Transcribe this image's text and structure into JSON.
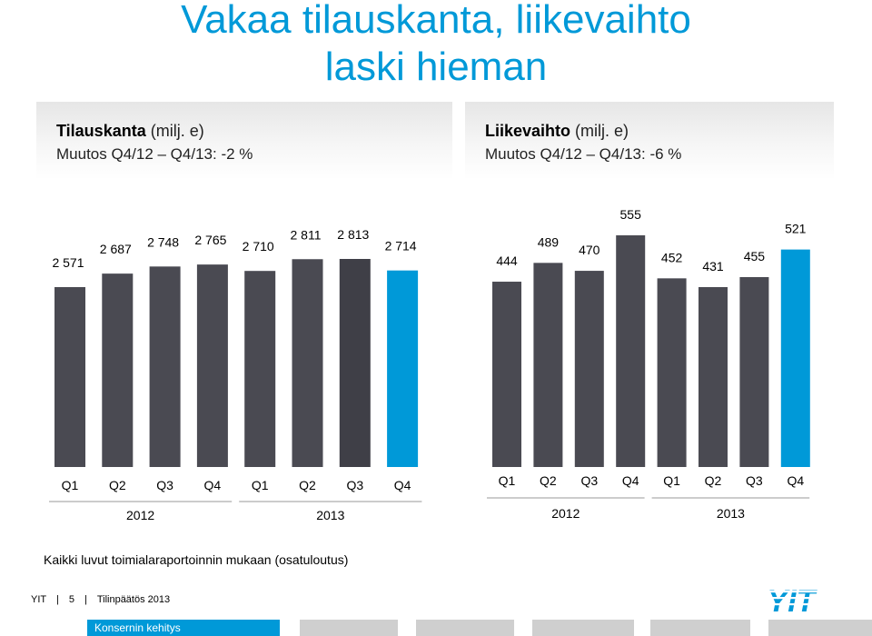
{
  "title_line1": "Vakaa tilauskanta, liikevaihto",
  "title_line2": "laski hieman",
  "left_panel": {
    "label": "Tilauskanta",
    "unit": "(milj. e)",
    "change": "Muutos Q4/12 – Q4/13: -2 %"
  },
  "right_panel": {
    "label": "Liikevaihto",
    "unit": "(milj. e)",
    "change": "Muutos Q4/12 – Q4/13: -6 %"
  },
  "chart_data": [
    {
      "type": "bar",
      "title": "Tilauskanta (milj. e)",
      "subtitle": "Muutos Q4/12 – Q4/13: -2 %",
      "categories": [
        "Q1",
        "Q2",
        "Q3",
        "Q4",
        "Q1",
        "Q2",
        "Q3",
        "Q4"
      ],
      "groups": [
        "2012",
        "2013"
      ],
      "values": [
        2571,
        2687,
        2748,
        2765,
        2710,
        2811,
        2813,
        2714
      ],
      "value_labels": [
        "2 571",
        "2 687",
        "2 748",
        "2 765",
        "2 710",
        "2 811",
        "2 813",
        "2 714"
      ],
      "highlight_index": 7,
      "ylim": [
        0,
        2813
      ],
      "grid": false
    },
    {
      "type": "bar",
      "title": "Liikevaihto (milj. e)",
      "subtitle": "Muutos Q4/12 – Q4/13: -6 %",
      "categories": [
        "Q1",
        "Q2",
        "Q3",
        "Q4",
        "Q1",
        "Q2",
        "Q3",
        "Q4"
      ],
      "groups": [
        "2012",
        "2013"
      ],
      "values": [
        444,
        489,
        470,
        555,
        452,
        431,
        455,
        521
      ],
      "value_labels": [
        "444",
        "489",
        "470",
        "555",
        "452",
        "431",
        "455",
        "521"
      ],
      "highlight_index": 7,
      "ylim": [
        0,
        555
      ],
      "grid": false
    }
  ],
  "colors": {
    "accent": "#0099d8",
    "bar": "#4a4a52",
    "bar_dark": "#3f3f47",
    "nav_gray": "#cfcfcf"
  },
  "note": "Kaikki luvut toimialaraportoinnin mukaan (osatuloutus)",
  "footer": {
    "company": "YIT",
    "page": "5",
    "doc": "Tilinpäätös 2013"
  },
  "logo_text": "YIT",
  "nav": {
    "active": "Konsernin kehitys"
  }
}
